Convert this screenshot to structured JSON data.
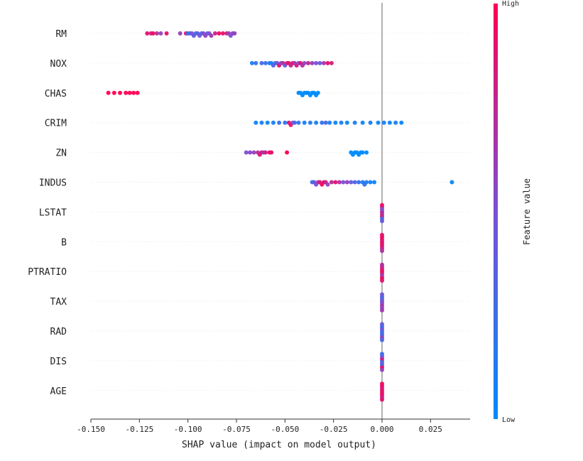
{
  "chart_data": {
    "type": "scatter",
    "subtype": "shap-beeswarm",
    "title": "",
    "xlabel": "SHAP value (impact on model output)",
    "ylabel": "",
    "xlim": [
      -0.15,
      0.045
    ],
    "xticks": [
      -0.15,
      -0.125,
      -0.1,
      -0.075,
      -0.05,
      -0.025,
      0.0,
      0.025
    ],
    "xtick_labels": [
      "-0.150",
      "-0.125",
      "-0.100",
      "-0.075",
      "-0.050",
      "-0.025",
      "0.000",
      "0.025"
    ],
    "reference_line": 0.0,
    "grid": false,
    "colorbar": {
      "title": "Feature value",
      "high_label": "High",
      "low_label": "Low",
      "high_color": "#ff0052",
      "low_color": "#008bfb"
    },
    "features": [
      {
        "name": "RM",
        "points": [
          {
            "x": -0.121,
            "v": 0.9
          },
          {
            "x": -0.119,
            "v": 0.8
          },
          {
            "x": -0.118,
            "v": 0.95
          },
          {
            "x": -0.116,
            "v": 0.7
          },
          {
            "x": -0.114,
            "v": 0.6
          },
          {
            "x": -0.111,
            "v": 0.9
          },
          {
            "x": -0.104,
            "v": 0.6
          },
          {
            "x": -0.101,
            "v": 0.9
          },
          {
            "x": -0.1,
            "v": 0.3
          },
          {
            "x": -0.099,
            "v": 0.2
          },
          {
            "x": -0.098,
            "v": 0.5
          },
          {
            "x": -0.097,
            "v": 0.4
          },
          {
            "x": -0.096,
            "v": 0.3
          },
          {
            "x": -0.095,
            "v": 0.35
          },
          {
            "x": -0.094,
            "v": 0.45
          },
          {
            "x": -0.093,
            "v": 0.3
          },
          {
            "x": -0.092,
            "v": 0.55
          },
          {
            "x": -0.091,
            "v": 0.6
          },
          {
            "x": -0.09,
            "v": 0.4
          },
          {
            "x": -0.089,
            "v": 0.5
          },
          {
            "x": -0.088,
            "v": 0.65
          },
          {
            "x": -0.086,
            "v": 0.8
          },
          {
            "x": -0.084,
            "v": 0.95
          },
          {
            "x": -0.082,
            "v": 0.9
          },
          {
            "x": -0.08,
            "v": 0.85
          },
          {
            "x": -0.079,
            "v": 0.6
          },
          {
            "x": -0.078,
            "v": 0.5
          },
          {
            "x": -0.077,
            "v": 0.55
          },
          {
            "x": -0.076,
            "v": 0.6
          }
        ]
      },
      {
        "name": "NOX",
        "points": [
          {
            "x": -0.067,
            "v": 0.1
          },
          {
            "x": -0.065,
            "v": 0.2
          },
          {
            "x": -0.062,
            "v": 0.3
          },
          {
            "x": -0.06,
            "v": 0.2
          },
          {
            "x": -0.058,
            "v": 0.15
          },
          {
            "x": -0.057,
            "v": 0.1
          },
          {
            "x": -0.056,
            "v": 0.35
          },
          {
            "x": -0.055,
            "v": 0.3
          },
          {
            "x": -0.054,
            "v": 0.45
          },
          {
            "x": -0.053,
            "v": 0.9
          },
          {
            "x": -0.052,
            "v": 0.6
          },
          {
            "x": -0.051,
            "v": 0.7
          },
          {
            "x": -0.05,
            "v": 0.4
          },
          {
            "x": -0.049,
            "v": 0.85
          },
          {
            "x": -0.048,
            "v": 0.9
          },
          {
            "x": -0.047,
            "v": 0.75
          },
          {
            "x": -0.046,
            "v": 0.95
          },
          {
            "x": -0.045,
            "v": 0.6
          },
          {
            "x": -0.044,
            "v": 0.85
          },
          {
            "x": -0.043,
            "v": 0.5
          },
          {
            "x": -0.042,
            "v": 0.9
          },
          {
            "x": -0.041,
            "v": 0.7
          },
          {
            "x": -0.04,
            "v": 0.55
          },
          {
            "x": -0.038,
            "v": 0.8
          },
          {
            "x": -0.036,
            "v": 0.6
          },
          {
            "x": -0.034,
            "v": 0.5
          },
          {
            "x": -0.032,
            "v": 0.45
          },
          {
            "x": -0.03,
            "v": 0.65
          },
          {
            "x": -0.028,
            "v": 0.9
          },
          {
            "x": -0.026,
            "v": 0.85
          }
        ]
      },
      {
        "name": "CHAS",
        "points": [
          {
            "x": -0.141,
            "v": 1.0
          },
          {
            "x": -0.138,
            "v": 1.0
          },
          {
            "x": -0.135,
            "v": 1.0
          },
          {
            "x": -0.132,
            "v": 1.0
          },
          {
            "x": -0.13,
            "v": 1.0
          },
          {
            "x": -0.128,
            "v": 1.0
          },
          {
            "x": -0.126,
            "v": 1.0
          },
          {
            "x": -0.043,
            "v": 0.0
          },
          {
            "x": -0.042,
            "v": 0.0
          },
          {
            "x": -0.041,
            "v": 0.0
          },
          {
            "x": -0.04,
            "v": 0.0
          },
          {
            "x": -0.039,
            "v": 0.0
          },
          {
            "x": -0.038,
            "v": 0.0
          },
          {
            "x": -0.037,
            "v": 0.0
          },
          {
            "x": -0.036,
            "v": 0.0
          },
          {
            "x": -0.035,
            "v": 0.0
          },
          {
            "x": -0.034,
            "v": 0.0
          },
          {
            "x": -0.033,
            "v": 0.0
          }
        ]
      },
      {
        "name": "CRIM",
        "points": [
          {
            "x": -0.065,
            "v": 0.05
          },
          {
            "x": -0.062,
            "v": 0.1
          },
          {
            "x": -0.059,
            "v": 0.05
          },
          {
            "x": -0.056,
            "v": 0.1
          },
          {
            "x": -0.053,
            "v": 0.2
          },
          {
            "x": -0.05,
            "v": 0.15
          },
          {
            "x": -0.048,
            "v": 0.9
          },
          {
            "x": -0.047,
            "v": 0.95
          },
          {
            "x": -0.046,
            "v": 0.5
          },
          {
            "x": -0.045,
            "v": 0.3
          },
          {
            "x": -0.043,
            "v": 0.2
          },
          {
            "x": -0.04,
            "v": 0.1
          },
          {
            "x": -0.037,
            "v": 0.15
          },
          {
            "x": -0.034,
            "v": 0.1
          },
          {
            "x": -0.031,
            "v": 0.2
          },
          {
            "x": -0.029,
            "v": 0.3
          },
          {
            "x": -0.027,
            "v": 0.1
          },
          {
            "x": -0.024,
            "v": 0.05
          },
          {
            "x": -0.021,
            "v": 0.1
          },
          {
            "x": -0.018,
            "v": 0.05
          },
          {
            "x": -0.014,
            "v": 0.1
          },
          {
            "x": -0.01,
            "v": 0.05
          },
          {
            "x": -0.006,
            "v": 0.1
          },
          {
            "x": -0.002,
            "v": 0.05
          },
          {
            "x": 0.001,
            "v": 0.1
          },
          {
            "x": 0.004,
            "v": 0.05
          },
          {
            "x": 0.007,
            "v": 0.1
          },
          {
            "x": 0.01,
            "v": 0.05
          }
        ]
      },
      {
        "name": "ZN",
        "points": [
          {
            "x": -0.07,
            "v": 0.5
          },
          {
            "x": -0.068,
            "v": 0.55
          },
          {
            "x": -0.066,
            "v": 0.6
          },
          {
            "x": -0.064,
            "v": 0.7
          },
          {
            "x": -0.063,
            "v": 0.85
          },
          {
            "x": -0.062,
            "v": 0.9
          },
          {
            "x": -0.061,
            "v": 0.6
          },
          {
            "x": -0.06,
            "v": 0.8
          },
          {
            "x": -0.058,
            "v": 0.95
          },
          {
            "x": -0.057,
            "v": 0.9
          },
          {
            "x": -0.049,
            "v": 1.0
          },
          {
            "x": -0.016,
            "v": 0.0
          },
          {
            "x": -0.015,
            "v": 0.0
          },
          {
            "x": -0.014,
            "v": 0.0
          },
          {
            "x": -0.013,
            "v": 0.0
          },
          {
            "x": -0.012,
            "v": 0.0
          },
          {
            "x": -0.011,
            "v": 0.0
          },
          {
            "x": -0.01,
            "v": 0.0
          },
          {
            "x": -0.008,
            "v": 0.0
          }
        ]
      },
      {
        "name": "INDUS",
        "points": [
          {
            "x": -0.036,
            "v": 0.2
          },
          {
            "x": -0.035,
            "v": 0.4
          },
          {
            "x": -0.034,
            "v": 0.5
          },
          {
            "x": -0.033,
            "v": 0.6
          },
          {
            "x": -0.032,
            "v": 0.85
          },
          {
            "x": -0.031,
            "v": 0.95
          },
          {
            "x": -0.03,
            "v": 0.9
          },
          {
            "x": -0.029,
            "v": 0.8
          },
          {
            "x": -0.028,
            "v": 0.6
          },
          {
            "x": -0.026,
            "v": 0.75
          },
          {
            "x": -0.024,
            "v": 0.9
          },
          {
            "x": -0.022,
            "v": 0.7
          },
          {
            "x": -0.02,
            "v": 0.5
          },
          {
            "x": -0.018,
            "v": 0.6
          },
          {
            "x": -0.016,
            "v": 0.4
          },
          {
            "x": -0.014,
            "v": 0.3
          },
          {
            "x": -0.012,
            "v": 0.25
          },
          {
            "x": -0.01,
            "v": 0.1
          },
          {
            "x": -0.009,
            "v": 0.2
          },
          {
            "x": -0.008,
            "v": 0.15
          },
          {
            "x": -0.006,
            "v": 0.1
          },
          {
            "x": -0.004,
            "v": 0.05
          },
          {
            "x": 0.036,
            "v": 0.05
          }
        ]
      },
      {
        "name": "LSTAT",
        "points": [
          {
            "x": 0.0,
            "v": 0.9
          },
          {
            "x": 0.0,
            "v": 0.7
          },
          {
            "x": 0.0,
            "v": 0.5
          },
          {
            "x": 0.0,
            "v": 0.8
          },
          {
            "x": 0.0,
            "v": 0.6
          },
          {
            "x": 0.0,
            "v": 0.3
          },
          {
            "x": 0.0,
            "v": 0.95
          },
          {
            "x": 0.0,
            "v": 0.4
          }
        ]
      },
      {
        "name": "B",
        "points": [
          {
            "x": 0.0,
            "v": 0.95
          },
          {
            "x": 0.0,
            "v": 0.9
          },
          {
            "x": 0.0,
            "v": 0.85
          },
          {
            "x": 0.0,
            "v": 0.9
          },
          {
            "x": 0.0,
            "v": 0.95
          },
          {
            "x": 0.0,
            "v": 0.8
          },
          {
            "x": 0.0,
            "v": 0.9
          },
          {
            "x": 0.0,
            "v": 0.7
          }
        ]
      },
      {
        "name": "PTRATIO",
        "points": [
          {
            "x": 0.0,
            "v": 0.95
          },
          {
            "x": 0.0,
            "v": 0.85
          },
          {
            "x": 0.0,
            "v": 0.9
          },
          {
            "x": 0.0,
            "v": 0.6
          },
          {
            "x": 0.0,
            "v": 0.8
          },
          {
            "x": 0.0,
            "v": 0.95
          },
          {
            "x": 0.0,
            "v": 0.7
          },
          {
            "x": 0.0,
            "v": 0.9
          }
        ]
      },
      {
        "name": "TAX",
        "points": [
          {
            "x": 0.0,
            "v": 0.6
          },
          {
            "x": 0.0,
            "v": 0.5
          },
          {
            "x": 0.0,
            "v": 0.4
          },
          {
            "x": 0.0,
            "v": 0.7
          },
          {
            "x": 0.0,
            "v": 0.3
          },
          {
            "x": 0.0,
            "v": 0.55
          },
          {
            "x": 0.0,
            "v": 0.45
          },
          {
            "x": 0.0,
            "v": 0.65
          }
        ]
      },
      {
        "name": "RAD",
        "points": [
          {
            "x": 0.0,
            "v": 0.3
          },
          {
            "x": 0.0,
            "v": 0.2
          },
          {
            "x": 0.0,
            "v": 0.5
          },
          {
            "x": 0.0,
            "v": 0.35
          },
          {
            "x": 0.0,
            "v": 0.25
          },
          {
            "x": 0.0,
            "v": 0.6
          },
          {
            "x": 0.0,
            "v": 0.4
          },
          {
            "x": 0.0,
            "v": 0.3
          }
        ]
      },
      {
        "name": "DIS",
        "points": [
          {
            "x": 0.0,
            "v": 0.2
          },
          {
            "x": 0.0,
            "v": 0.4
          },
          {
            "x": 0.0,
            "v": 0.85
          },
          {
            "x": 0.0,
            "v": 0.3
          },
          {
            "x": 0.0,
            "v": 0.5
          },
          {
            "x": 0.0,
            "v": 0.9
          },
          {
            "x": 0.0,
            "v": 0.25
          },
          {
            "x": 0.0,
            "v": 0.6
          }
        ]
      },
      {
        "name": "AGE",
        "points": [
          {
            "x": 0.0,
            "v": 0.95
          },
          {
            "x": 0.0,
            "v": 0.9
          },
          {
            "x": 0.0,
            "v": 0.85
          },
          {
            "x": 0.0,
            "v": 0.95
          },
          {
            "x": 0.0,
            "v": 0.9
          },
          {
            "x": 0.0,
            "v": 0.8
          },
          {
            "x": 0.0,
            "v": 0.95
          },
          {
            "x": 0.0,
            "v": 0.9
          }
        ]
      }
    ]
  }
}
